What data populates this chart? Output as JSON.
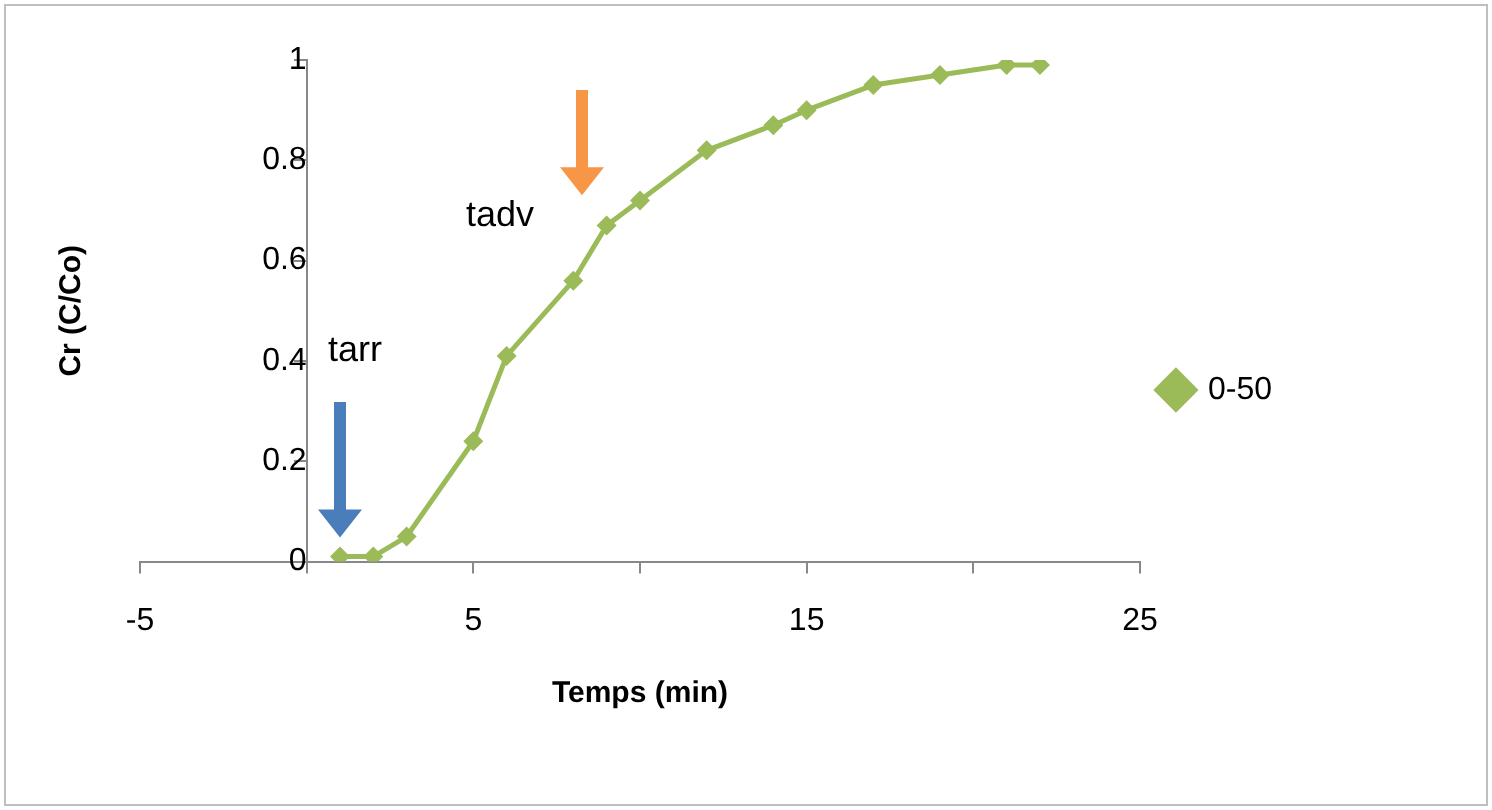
{
  "chart_data": {
    "type": "line",
    "xlabel": "Temps (min)",
    "ylabel": "Cr (C/Co)",
    "x": [
      1,
      2,
      3,
      5,
      6,
      8,
      9,
      10,
      12,
      14,
      15,
      17,
      19,
      21,
      22
    ],
    "series": [
      {
        "name": "0-50",
        "color": "#9bbb59",
        "values": [
          0.01,
          0.01,
          0.05,
          0.24,
          0.41,
          0.56,
          0.67,
          0.72,
          0.82,
          0.87,
          0.9,
          0.95,
          0.97,
          0.99,
          0.99
        ]
      }
    ],
    "xlim": [
      -5,
      25
    ],
    "xticks": [
      -5,
      {
        "value": 0,
        "label": null
      },
      5,
      {
        "value": 10,
        "label": null
      },
      15,
      {
        "value": 20,
        "label": null
      },
      25
    ],
    "ylim": [
      0,
      1
    ],
    "yticks": [
      0,
      0.2,
      0.4,
      0.6,
      0.8,
      1
    ],
    "annotations": [
      "tarr",
      "tadv"
    ],
    "grid": false,
    "legend": "right",
    "marker": "diamond",
    "line_style": "solid"
  }
}
